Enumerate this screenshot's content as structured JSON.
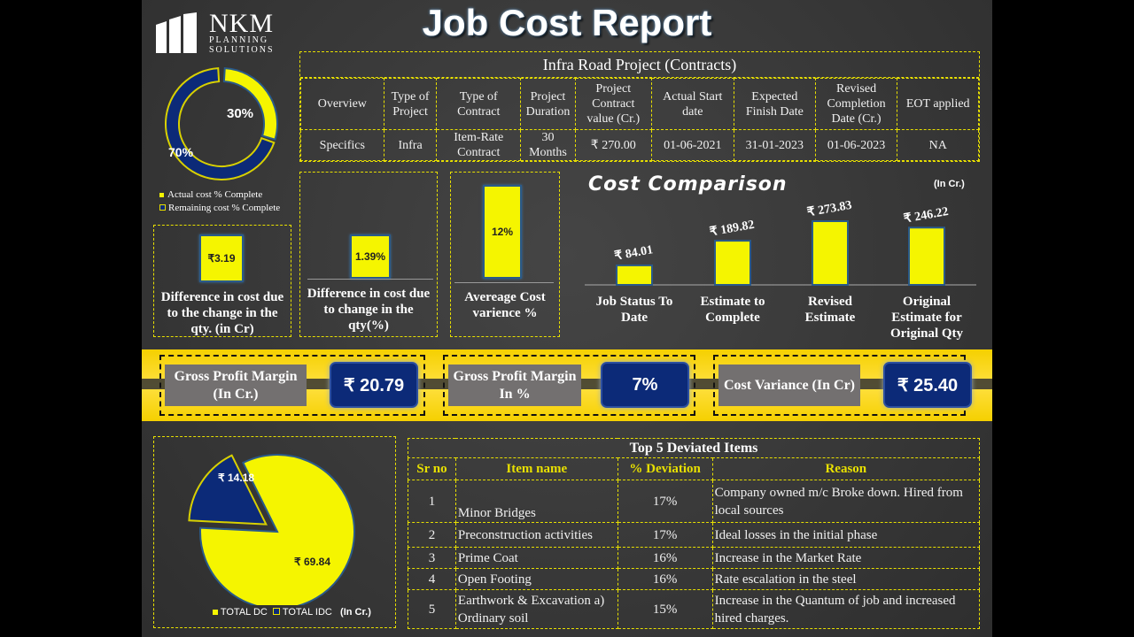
{
  "header": {
    "title": "Job Cost Report"
  },
  "logo": {
    "name": "NKM",
    "sub1": "PLANNING",
    "sub2": "SOLUTIONS"
  },
  "donut": {
    "actual_pct": 30,
    "remaining_pct": 70,
    "actual_label": "30%",
    "remaining_label": "70%",
    "legend_actual": "Actual cost % Complete",
    "legend_remaining": "Remaining cost  % Complete",
    "colors": {
      "actual": "#f5f500",
      "remaining": "#0c2a78"
    }
  },
  "project": {
    "title": "Infra Road Project (Contracts)",
    "headers": [
      "Overview",
      "Type of Project",
      "Type of Contract",
      "Project Duration",
      "Project Contract value (Cr.)",
      "Actual Start date",
      "Expected Finish Date",
      "Revised Completion Date (Cr.)",
      "EOT applied"
    ],
    "values": [
      "Specifics",
      "Infra",
      "Item-Rate Contract",
      "30 Months",
      "₹  270.00",
      "01-06-2021",
      "31-01-2023",
      "01-06-2023",
      "NA"
    ]
  },
  "mini": [
    {
      "value": "₹3.19",
      "caption": "Difference in cost due to the change in the qty. (in Cr)"
    },
    {
      "value": "1.39%",
      "caption": "Difference in cost due to change in the qty(%)"
    },
    {
      "value": "12%",
      "caption": "Avereage Cost varience %"
    }
  ],
  "chart_data": {
    "type": "bar",
    "title": "Cost Comparison",
    "unit": "(In Cr.)",
    "categories": [
      "Job Status To Date",
      "Estimate to Complete",
      "Revised Estimate",
      "Original Estimate for Original Qty"
    ],
    "values": [
      84.01,
      189.82,
      273.83,
      246.22
    ],
    "labels": [
      "₹ 84.01",
      "₹ 189.82",
      "₹ 273.83",
      "₹ 246.22"
    ]
  },
  "kpis": [
    {
      "label": "Gross Profit Margin (In  Cr.)",
      "value": "₹ 20.79"
    },
    {
      "label": "Gross Profit Margin In %",
      "value": "7%"
    },
    {
      "label": "Cost Variance (In Cr)",
      "value": "₹ 25.40"
    }
  ],
  "pie": {
    "dc": 69.84,
    "idc": 14.18,
    "dc_label": "₹ 69.84",
    "idc_label": "₹ 14.18",
    "legend_dc": "TOTAL DC",
    "legend_idc": "TOTAL IDC",
    "unit": "(In Cr.)"
  },
  "deviated": {
    "title": "Top 5 Deviated Items",
    "headers": [
      "Sr no",
      "Item name",
      "% Deviation",
      "Reason"
    ],
    "rows": [
      [
        "1",
        "Minor Bridges",
        "17%",
        "Company owned m/c Broke down. Hired from local sources"
      ],
      [
        "2",
        "Preconstruction activities",
        "17%",
        "Ideal losses in the initial phase"
      ],
      [
        "3",
        "Prime Coat",
        "16%",
        "Increase in the Market Rate"
      ],
      [
        "4",
        "Open Footing",
        "16%",
        "Rate escalation in the steel"
      ],
      [
        "5",
        "Earthwork & Excavation a) Ordinary soil",
        "15%",
        "Increase in the Quantum of job and increased hired charges."
      ]
    ]
  }
}
